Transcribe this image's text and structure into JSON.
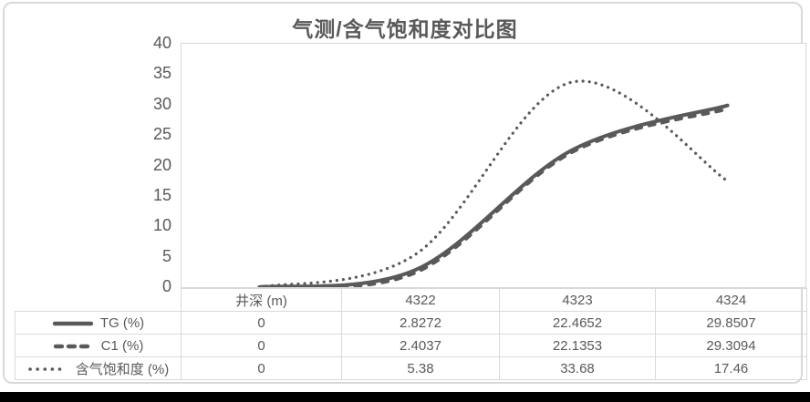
{
  "chart_data": {
    "type": "line",
    "title": "气测/含气饱和度对比图",
    "categories": [
      "井深 (m)",
      "4322",
      "4323",
      "4324"
    ],
    "series": [
      {
        "name": "TG (%)",
        "line_style": "solid",
        "values": [
          0,
          2.8272,
          22.4652,
          29.8507
        ]
      },
      {
        "name": "C1 (%)",
        "line_style": "dashed",
        "values": [
          0,
          2.4037,
          22.1353,
          29.3094
        ]
      },
      {
        "name": "含气饱和度 (%)",
        "line_style": "dotted",
        "values": [
          0,
          5.38,
          33.68,
          17.46
        ]
      }
    ],
    "xlabel": "",
    "ylabel": "",
    "ylim": [
      0,
      40
    ],
    "y_ticks": [
      40,
      35,
      30,
      25,
      20,
      15,
      10,
      5,
      0
    ],
    "grid": false,
    "smooth_lines": true,
    "legend_position": "data-table-left",
    "data_table_shown": true,
    "colors": {
      "line": "#595959",
      "text": "#595959",
      "border": "#d9d9d9",
      "frame": "#d9d9d9",
      "bottom_bar": "#000000",
      "background": "#ffffff"
    }
  }
}
